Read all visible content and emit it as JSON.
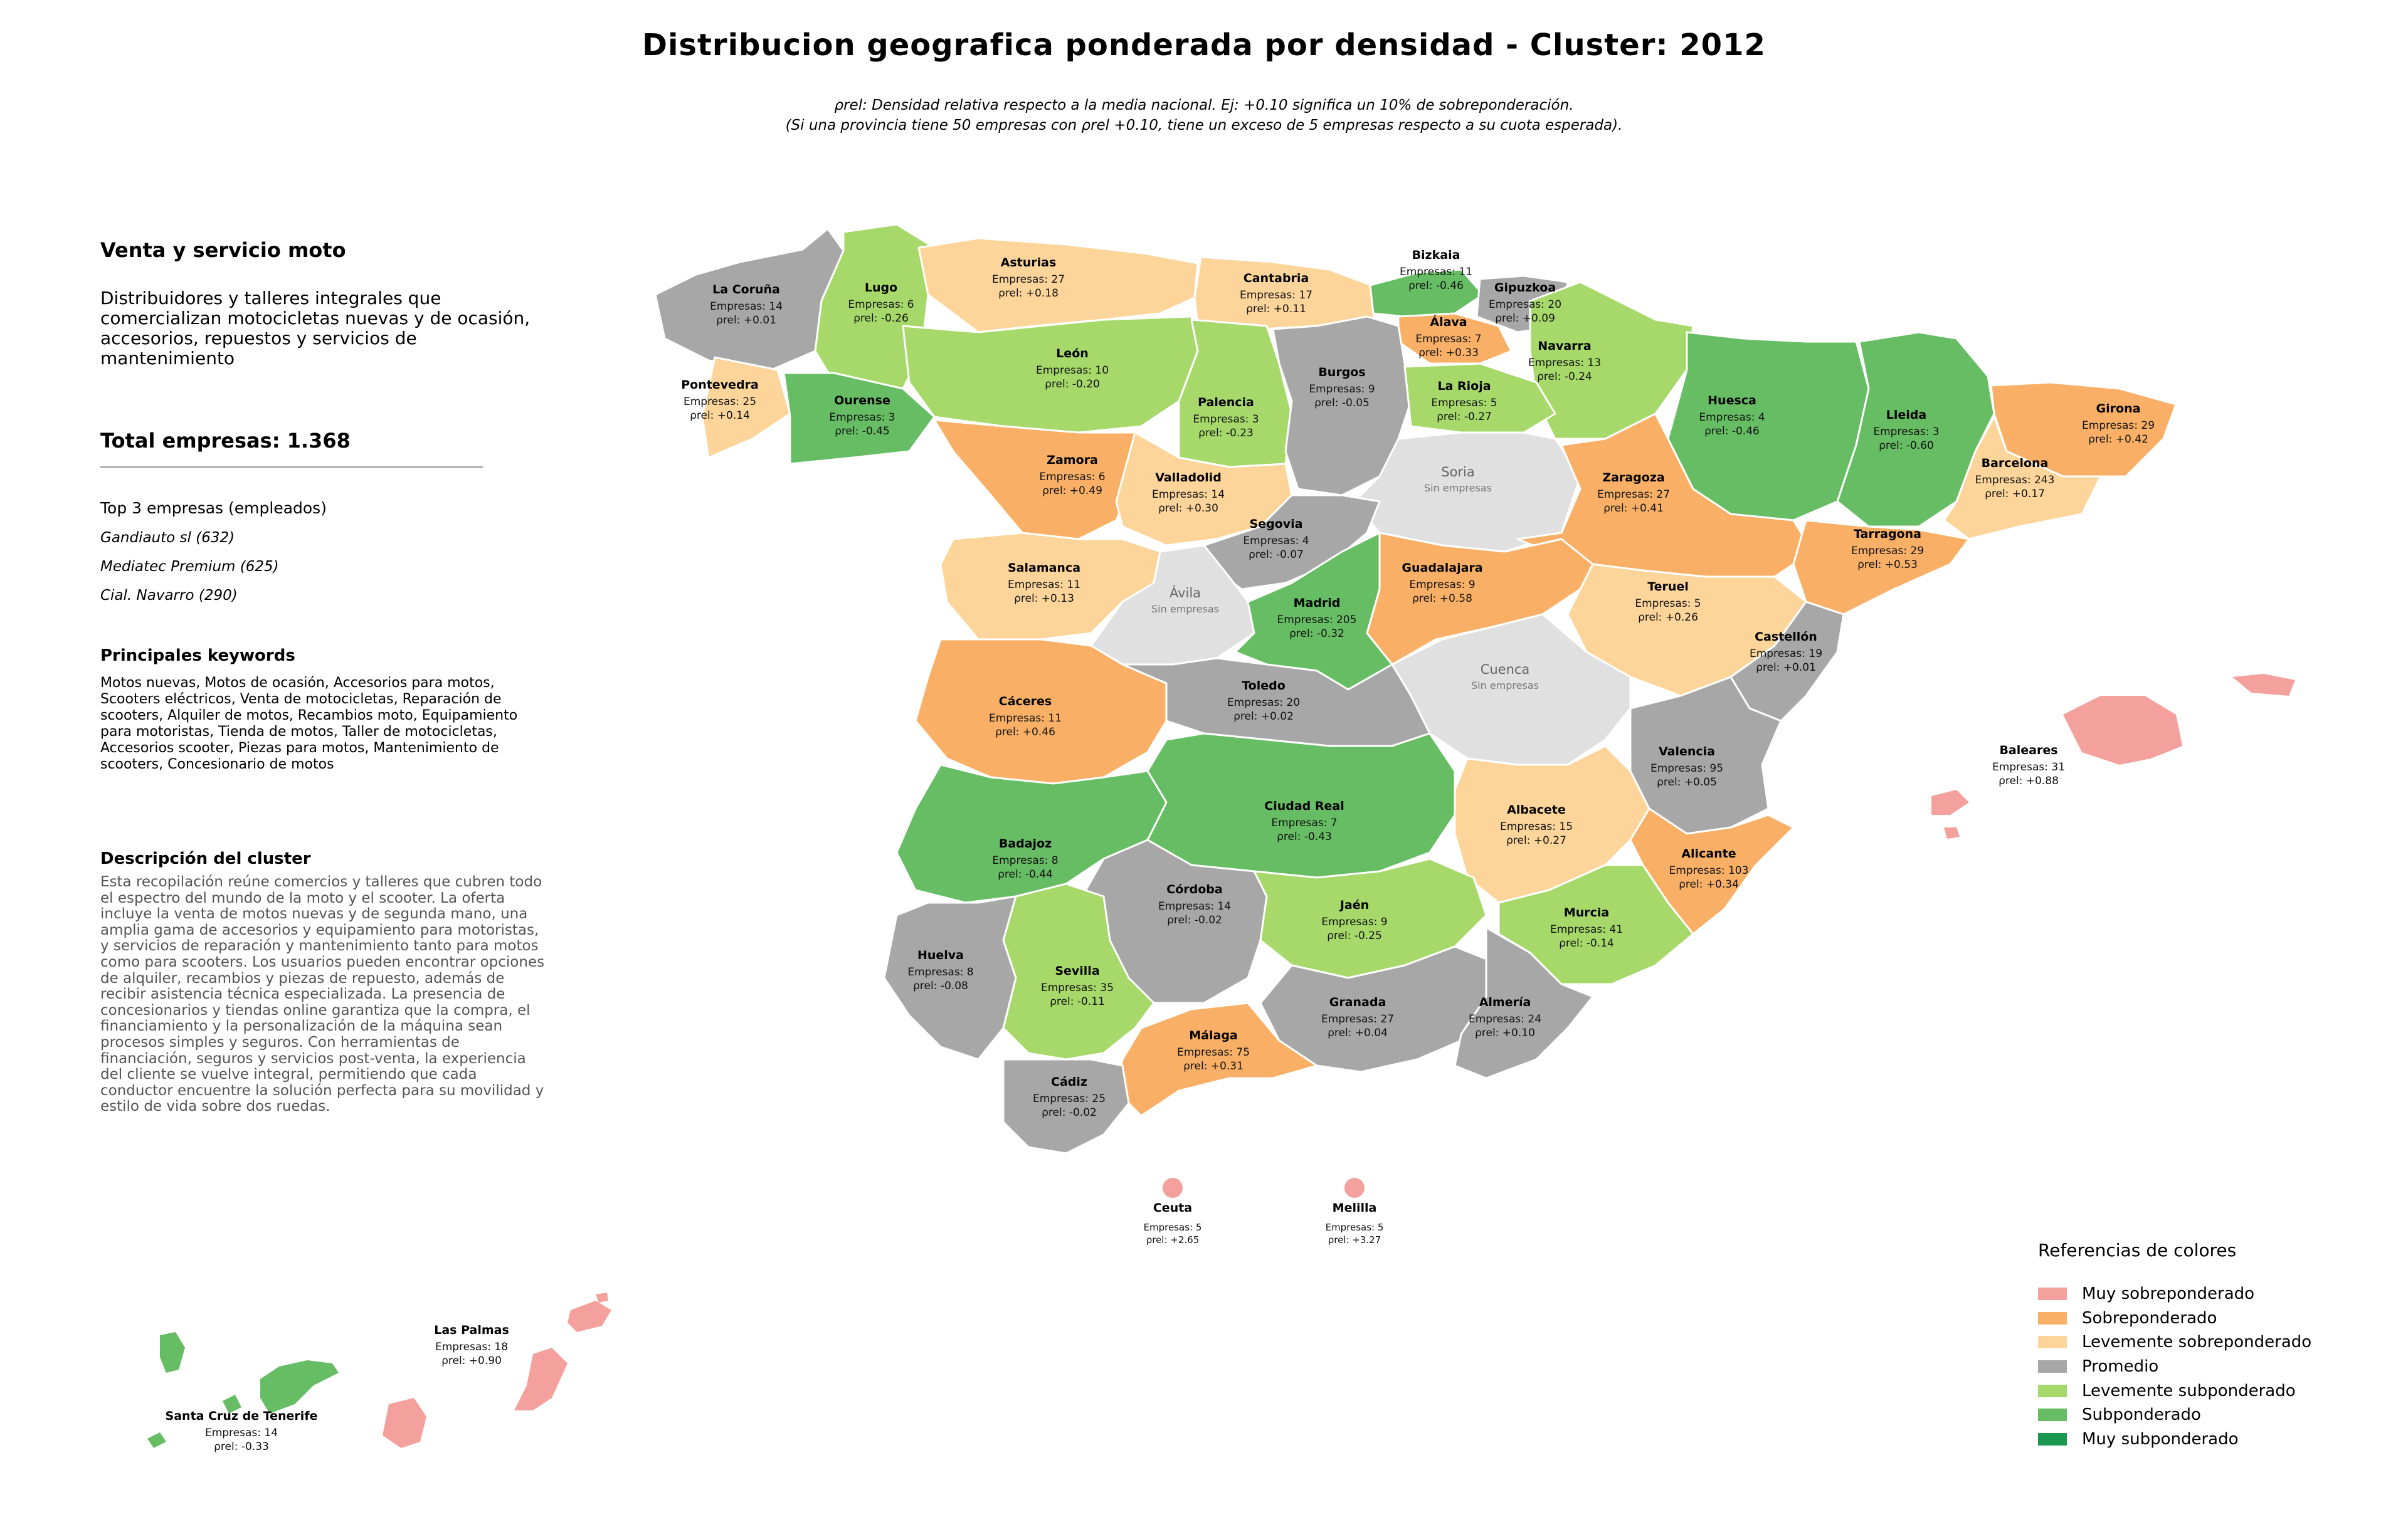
{
  "title": "Distribucion geografica ponderada por densidad - Cluster: 2012",
  "subtitle": {
    "line1": "ρrel: Densidad relativa respecto a la media nacional. Ej: +0.10 significa un 10% de sobreponderación.",
    "line2": "(Si una provincia tiene 50 empresas con ρrel +0.10, tiene un exceso de 5 empresas respecto a su cuota esperada)."
  },
  "panel": {
    "cluster_name": "Venta y servicio moto",
    "cluster_desc": "Distribuidores y talleres integrales que comercializan motocicletas nuevas y de ocasión, accesorios, repuestos y servicios de mantenimiento",
    "total": "Total empresas: 1.368",
    "top_label": "Top 3 empresas (empleados)",
    "top_companies": [
      "Gandiauto sl (632)",
      "Mediatec Premium (625)",
      "Cial. Navarro (290)"
    ],
    "keywords_title": "Principales keywords",
    "keywords": "Motos nuevas, Motos de ocasión, Accesorios para motos, Scooters eléctricos, Venta de motocicletas, Reparación de scooters, Alquiler de motos, Recambios moto, Equipamiento para motoristas, Tienda de motos, Taller de motocicletas, Accesorios scooter, Piezas para motos, Mantenimiento de scooters, Concesionario de motos",
    "description_title": "Descripción del cluster",
    "description": "Esta recopilación reúne comercios y talleres que cubren todo el espectro del mundo de la moto y el scooter. La oferta incluye la venta de motos nuevas y de segunda mano, una amplia gama de accesorios y equipamiento para motoristas, y servicios de reparación y mantenimiento tanto para motos como para scooters. Los usuarios pueden encontrar opciones de alquiler, recambios y piezas de repuesto, además de recibir asistencia técnica especializada. La presencia de concesionarios y tiendas online garantiza que la compra, el financiamiento y la personalización de la máquina sean procesos simples y seguros. Con herramientas de financiación, seguros y servicios post-venta, la experiencia del cliente se vuelve integral, permitiendo que cada conductor encuentre la solución perfecta para su movilidad y estilo de vida sobre dos ruedas."
  },
  "colors": {
    "muy_sobre": "#f4a09c",
    "sobre": "#f9b066",
    "leve_sobre": "#fdd59a",
    "promedio": "#a7a7a7",
    "leve_sub": "#a6d96a",
    "sub": "#66bd63",
    "muy_sub": "#1a9850",
    "sin": "#e0e0e0"
  },
  "legend": {
    "title": "Referencias de colores",
    "items": [
      {
        "label": "Muy sobreponderado",
        "color": "#f4a09c"
      },
      {
        "label": "Sobreponderado",
        "color": "#f9b066"
      },
      {
        "label": "Levemente sobreponderado",
        "color": "#fdd59a"
      },
      {
        "label": "Promedio",
        "color": "#a7a7a7"
      },
      {
        "label": "Levemente subponderado",
        "color": "#a6d96a"
      },
      {
        "label": "Subponderado",
        "color": "#66bd63"
      },
      {
        "label": "Muy subponderado",
        "color": "#1a9850"
      }
    ]
  },
  "empresas_prefix": "Empresas: ",
  "rho_prefix": "ρrel: ",
  "sin_empresas": "Sin empresas",
  "provinces": [
    {
      "name": "La Coruña",
      "empresas": 14,
      "rho": "+0.01",
      "cat": "promedio"
    },
    {
      "name": "Lugo",
      "empresas": 6,
      "rho": "-0.26",
      "cat": "leve_sub"
    },
    {
      "name": "Asturias",
      "empresas": 27,
      "rho": "+0.18",
      "cat": "leve_sobre"
    },
    {
      "name": "Cantabria",
      "empresas": 17,
      "rho": "+0.11",
      "cat": "leve_sobre"
    },
    {
      "name": "Bizkaia",
      "empresas": 11,
      "rho": "-0.46",
      "cat": "sub"
    },
    {
      "name": "Gipuzkoa",
      "empresas": 20,
      "rho": "+0.09",
      "cat": "promedio"
    },
    {
      "name": "Álava",
      "empresas": 7,
      "rho": "+0.33",
      "cat": "sobre"
    },
    {
      "name": "Navarra",
      "empresas": 13,
      "rho": "-0.24",
      "cat": "leve_sub"
    },
    {
      "name": "Pontevedra",
      "empresas": 25,
      "rho": "+0.14",
      "cat": "leve_sobre"
    },
    {
      "name": "Ourense",
      "empresas": 3,
      "rho": "-0.45",
      "cat": "sub"
    },
    {
      "name": "León",
      "empresas": 10,
      "rho": "-0.20",
      "cat": "leve_sub"
    },
    {
      "name": "Palencia",
      "empresas": 3,
      "rho": "-0.23",
      "cat": "leve_sub"
    },
    {
      "name": "Burgos",
      "empresas": 9,
      "rho": "-0.05",
      "cat": "promedio"
    },
    {
      "name": "La Rioja",
      "empresas": 5,
      "rho": "-0.27",
      "cat": "leve_sub"
    },
    {
      "name": "Huesca",
      "empresas": 4,
      "rho": "-0.46",
      "cat": "sub"
    },
    {
      "name": "Lleida",
      "empresas": 3,
      "rho": "-0.60",
      "cat": "sub"
    },
    {
      "name": "Girona",
      "empresas": 29,
      "rho": "+0.42",
      "cat": "sobre"
    },
    {
      "name": "Barcelona",
      "empresas": 243,
      "rho": "+0.17",
      "cat": "leve_sobre"
    },
    {
      "name": "Zamora",
      "empresas": 6,
      "rho": "+0.49",
      "cat": "sobre"
    },
    {
      "name": "Valladolid",
      "empresas": 14,
      "rho": "+0.30",
      "cat": "leve_sobre"
    },
    {
      "name": "Soria",
      "empresas": null,
      "rho": null,
      "cat": "sin"
    },
    {
      "name": "Zaragoza",
      "empresas": 27,
      "rho": "+0.41",
      "cat": "sobre"
    },
    {
      "name": "Tarragona",
      "empresas": 29,
      "rho": "+0.53",
      "cat": "sobre"
    },
    {
      "name": "Segovia",
      "empresas": 4,
      "rho": "-0.07",
      "cat": "promedio"
    },
    {
      "name": "Salamanca",
      "empresas": 11,
      "rho": "+0.13",
      "cat": "leve_sobre"
    },
    {
      "name": "Ávila",
      "empresas": null,
      "rho": null,
      "cat": "sin"
    },
    {
      "name": "Madrid",
      "empresas": 205,
      "rho": "-0.32",
      "cat": "sub"
    },
    {
      "name": "Guadalajara",
      "empresas": 9,
      "rho": "+0.58",
      "cat": "sobre"
    },
    {
      "name": "Teruel",
      "empresas": 5,
      "rho": "+0.26",
      "cat": "leve_sobre"
    },
    {
      "name": "Castellón",
      "empresas": 19,
      "rho": "+0.01",
      "cat": "promedio"
    },
    {
      "name": "Cuenca",
      "empresas": null,
      "rho": null,
      "cat": "sin"
    },
    {
      "name": "Cáceres",
      "empresas": 11,
      "rho": "+0.46",
      "cat": "sobre"
    },
    {
      "name": "Toledo",
      "empresas": 20,
      "rho": "+0.02",
      "cat": "promedio"
    },
    {
      "name": "Valencia",
      "empresas": 95,
      "rho": "+0.05",
      "cat": "promedio"
    },
    {
      "name": "Ciudad Real",
      "empresas": 7,
      "rho": "-0.43",
      "cat": "sub"
    },
    {
      "name": "Albacete",
      "empresas": 15,
      "rho": "+0.27",
      "cat": "leve_sobre"
    },
    {
      "name": "Badajoz",
      "empresas": 8,
      "rho": "-0.44",
      "cat": "sub"
    },
    {
      "name": "Alicante",
      "empresas": 103,
      "rho": "+0.34",
      "cat": "sobre"
    },
    {
      "name": "Córdoba",
      "empresas": 14,
      "rho": "-0.02",
      "cat": "promedio"
    },
    {
      "name": "Jaén",
      "empresas": 9,
      "rho": "-0.25",
      "cat": "leve_sub"
    },
    {
      "name": "Murcia",
      "empresas": 41,
      "rho": "-0.14",
      "cat": "leve_sub"
    },
    {
      "name": "Huelva",
      "empresas": 8,
      "rho": "-0.08",
      "cat": "promedio"
    },
    {
      "name": "Sevilla",
      "empresas": 35,
      "rho": "-0.11",
      "cat": "leve_sub"
    },
    {
      "name": "Granada",
      "empresas": 27,
      "rho": "+0.04",
      "cat": "promedio"
    },
    {
      "name": "Almería",
      "empresas": 24,
      "rho": "+0.10",
      "cat": "promedio"
    },
    {
      "name": "Málaga",
      "empresas": 75,
      "rho": "+0.31",
      "cat": "sobre"
    },
    {
      "name": "Cádiz",
      "empresas": 25,
      "rho": "-0.02",
      "cat": "promedio"
    },
    {
      "name": "Baleares",
      "empresas": 31,
      "rho": "+0.88",
      "cat": "muy_sobre"
    },
    {
      "name": "Ceuta",
      "empresas": 5,
      "rho": "+2.65",
      "cat": "muy_sobre"
    },
    {
      "name": "Melilla",
      "empresas": 5,
      "rho": "+3.27",
      "cat": "muy_sobre"
    },
    {
      "name": "Las Palmas",
      "empresas": 18,
      "rho": "+0.90",
      "cat": "muy_sobre"
    },
    {
      "name": "Santa Cruz de Tenerife",
      "empresas": 14,
      "rho": "-0.33",
      "cat": "sub"
    }
  ]
}
